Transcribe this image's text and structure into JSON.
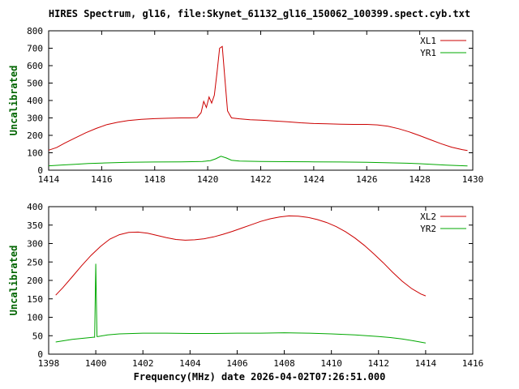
{
  "title": "HIRES Spectrum, gl16, file:Skynet_61132_gl16_150062_100399.spect.cyb.txt",
  "styles": {
    "background": "#ffffff",
    "axis_color": "#000000",
    "title_color": "#000000",
    "ylabel_color": "#006400",
    "series_red": "#cc0000",
    "series_green": "#00a800"
  },
  "chart_data": [
    {
      "type": "line",
      "ylabel": "Uncalibrated",
      "xlabel": "",
      "xlim": [
        1414,
        1430
      ],
      "ylim": [
        0,
        800
      ],
      "xtick_step": 2,
      "ytick_step": 100,
      "grid": false,
      "legend_position": "top-right",
      "series": [
        {
          "name": "XL1",
          "color": "#cc0000",
          "x": [
            1414.0,
            1414.3,
            1414.6,
            1415.0,
            1415.4,
            1415.8,
            1416.2,
            1416.6,
            1417.0,
            1417.5,
            1418.0,
            1418.5,
            1419.0,
            1419.3,
            1419.6,
            1419.75,
            1419.85,
            1419.95,
            1420.05,
            1420.15,
            1420.25,
            1420.35,
            1420.45,
            1420.55,
            1420.65,
            1420.75,
            1420.9,
            1421.2,
            1421.6,
            1422.0,
            1422.5,
            1423.0,
            1423.5,
            1424.0,
            1424.5,
            1425.0,
            1425.5,
            1426.0,
            1426.4,
            1426.8,
            1427.2,
            1427.6,
            1428.0,
            1428.4,
            1428.8,
            1429.2,
            1429.6,
            1429.8
          ],
          "y": [
            115,
            130,
            155,
            185,
            215,
            240,
            262,
            275,
            285,
            292,
            296,
            298,
            300,
            300,
            302,
            330,
            395,
            360,
            420,
            385,
            430,
            560,
            700,
            710,
            520,
            340,
            300,
            295,
            290,
            287,
            283,
            278,
            272,
            268,
            266,
            264,
            263,
            263,
            260,
            252,
            238,
            220,
            198,
            175,
            152,
            132,
            118,
            113
          ]
        },
        {
          "name": "YR1",
          "color": "#00a800",
          "x": [
            1414.0,
            1414.5,
            1415.0,
            1415.5,
            1416.0,
            1417.0,
            1418.0,
            1419.0,
            1419.8,
            1420.1,
            1420.3,
            1420.5,
            1420.7,
            1420.9,
            1421.2,
            1422.0,
            1423.0,
            1424.0,
            1425.0,
            1426.0,
            1427.0,
            1427.5,
            1428.0,
            1428.5,
            1429.0,
            1429.5,
            1429.8
          ],
          "y": [
            25,
            30,
            34,
            38,
            41,
            45,
            47,
            48,
            50,
            55,
            65,
            80,
            70,
            57,
            52,
            50,
            49,
            48,
            47,
            45,
            42,
            40,
            37,
            33,
            29,
            26,
            24
          ]
        }
      ]
    },
    {
      "type": "line",
      "ylabel": "Uncalibrated",
      "xlabel": "Frequency(MHz) date 2026-04-02T07:26:51.000",
      "xlim": [
        1398,
        1416
      ],
      "ylim": [
        0,
        400
      ],
      "xtick_step": 2,
      "ytick_step": 50,
      "grid": false,
      "legend_position": "top-right",
      "series": [
        {
          "name": "XL2",
          "color": "#cc0000",
          "x": [
            1398.3,
            1398.6,
            1399.0,
            1399.4,
            1399.8,
            1400.2,
            1400.6,
            1401.0,
            1401.4,
            1401.8,
            1402.2,
            1402.6,
            1403.0,
            1403.4,
            1403.8,
            1404.2,
            1404.6,
            1405.0,
            1405.4,
            1405.8,
            1406.2,
            1406.6,
            1407.0,
            1407.4,
            1407.8,
            1408.2,
            1408.6,
            1409.0,
            1409.4,
            1409.8,
            1410.2,
            1410.6,
            1411.0,
            1411.4,
            1411.8,
            1412.2,
            1412.6,
            1413.0,
            1413.4,
            1413.8,
            1414.0
          ],
          "y": [
            160,
            180,
            210,
            240,
            268,
            292,
            312,
            324,
            330,
            331,
            328,
            322,
            316,
            311,
            309,
            310,
            313,
            318,
            325,
            333,
            342,
            351,
            360,
            367,
            372,
            375,
            374,
            371,
            365,
            357,
            346,
            332,
            315,
            295,
            272,
            248,
            222,
            198,
            178,
            163,
            158
          ]
        },
        {
          "name": "YR2",
          "color": "#00a800",
          "x": [
            1398.3,
            1399.0,
            1399.6,
            1399.9,
            1399.95,
            1400.0,
            1400.05,
            1400.1,
            1400.5,
            1401.0,
            1402.0,
            1403.0,
            1404.0,
            1405.0,
            1406.0,
            1407.0,
            1408.0,
            1409.0,
            1410.0,
            1411.0,
            1412.0,
            1412.5,
            1413.0,
            1413.5,
            1414.0
          ],
          "y": [
            33,
            40,
            44,
            46,
            46,
            245,
            48,
            48,
            52,
            55,
            57,
            57,
            56,
            56,
            57,
            57,
            58,
            57,
            55,
            52,
            48,
            45,
            41,
            36,
            30
          ]
        }
      ]
    }
  ]
}
